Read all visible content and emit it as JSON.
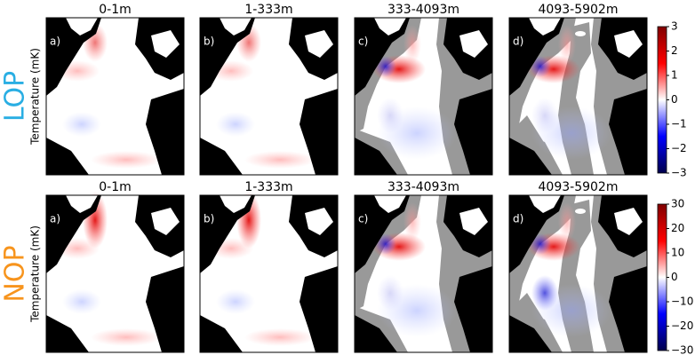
{
  "rows": [
    {
      "label": "LOP",
      "ylabel": "Temperature (mK)",
      "panels": [
        {
          "letter": "a)",
          "title": "0-1m"
        },
        {
          "letter": "b)",
          "title": "1-333m"
        },
        {
          "letter": "c)",
          "title": "333-4093m"
        },
        {
          "letter": "d)",
          "title": "4093-5902m"
        }
      ],
      "colorbar": {
        "lim": [
          -3,
          3
        ],
        "ticks": [
          {
            "value": -3,
            "label": "−3"
          },
          {
            "value": -2,
            "label": "−2"
          },
          {
            "value": -1,
            "label": "−1"
          },
          0,
          1,
          2,
          3
        ]
      }
    },
    {
      "label": "NOP",
      "ylabel": "Temperature (mK)",
      "panels": [
        {
          "letter": "a)",
          "title": "0-1m"
        },
        {
          "letter": "b)",
          "title": "1-333m"
        },
        {
          "letter": "c)",
          "title": "333-4093m"
        },
        {
          "letter": "d)",
          "title": "4093-5902m"
        }
      ],
      "colorbar": {
        "lim": [
          -30,
          30
        ],
        "ticks": [
          {
            "value": -30,
            "label": "−30"
          },
          {
            "value": -20,
            "label": "−20"
          },
          {
            "value": -10,
            "label": "−10"
          },
          0,
          10,
          20,
          30
        ]
      }
    }
  ]
}
